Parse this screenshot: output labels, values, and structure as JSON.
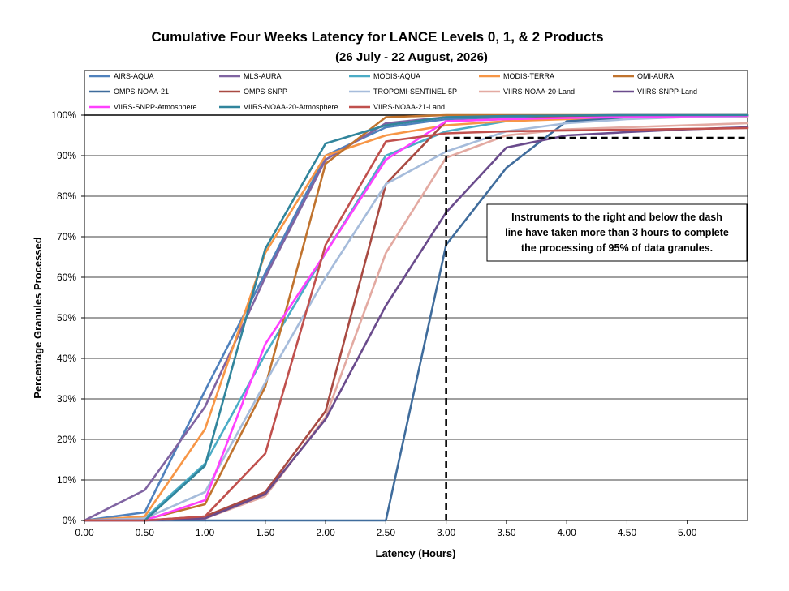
{
  "chart_data": {
    "type": "line",
    "title": "Cumulative Four Weeks Latency  for LANCE Levels 0, 1, & 2 Products",
    "subtitle": "(26  July   -  22  August,  2026)",
    "xlabel": "Latency (Hours)",
    "ylabel": "Percentage Granules Processed",
    "xlim": [
      0,
      5.5
    ],
    "ylim": [
      0,
      100
    ],
    "x_ticks": [
      "0.00",
      "0.50",
      "1.00",
      "1.50",
      "2.00",
      "2.50",
      "3.00",
      "3.50",
      "4.00",
      "4.50",
      "5.00"
    ],
    "y_ticks": [
      "0%",
      "10%",
      "20%",
      "30%",
      "40%",
      "50%",
      "60%",
      "70%",
      "80%",
      "90%",
      "100%"
    ],
    "grid": "horizontal",
    "legend_position": "top",
    "series": [
      {
        "name": "AIRS-AQUA",
        "color": "#4f81bd",
        "x": [
          0,
          0.5,
          1,
          1.5,
          2,
          2.5,
          3,
          3.5,
          4,
          4.5,
          5,
          5.5
        ],
        "y": [
          0,
          2,
          32,
          61,
          90,
          97,
          99,
          99.5,
          99.7,
          99.8,
          99.9,
          100
        ]
      },
      {
        "name": "MLS-AURA",
        "color": "#8064a2",
        "x": [
          0,
          0.5,
          1,
          1.5,
          2,
          2.5,
          3,
          3.5,
          4,
          4.5,
          5,
          5.5
        ],
        "y": [
          0,
          7.5,
          28,
          60,
          89,
          98,
          99.5,
          99.8,
          99.9,
          100,
          100,
          100
        ]
      },
      {
        "name": "MODIS-AQUA",
        "color": "#4bacc6",
        "x": [
          0,
          0.5,
          1,
          1.5,
          2,
          2.5,
          3,
          3.5,
          4,
          4.5,
          5,
          5.5
        ],
        "y": [
          0,
          0.5,
          14,
          41,
          66,
          90,
          96,
          98.5,
          99.5,
          99.8,
          99.9,
          100
        ]
      },
      {
        "name": "MODIS-TERRA",
        "color": "#f79646",
        "x": [
          0,
          0.5,
          1,
          1.5,
          2,
          2.5,
          3,
          3.5,
          4,
          4.5,
          5,
          5.5
        ],
        "y": [
          0,
          1,
          22.5,
          66,
          90,
          95,
          97.5,
          98.5,
          99,
          99.3,
          99.5,
          99.6
        ]
      },
      {
        "name": "OMI-AURA",
        "color": "#c0732e",
        "x": [
          0,
          0.5,
          1,
          1.5,
          2,
          2.5,
          3,
          3.5,
          4,
          4.5,
          5,
          5.5
        ],
        "y": [
          0,
          0.2,
          4,
          33,
          88,
          99.5,
          100,
          100,
          100,
          100,
          100,
          100
        ]
      },
      {
        "name": "OMPS-NOAA-21",
        "color": "#3f6c9c",
        "x": [
          0,
          0.5,
          1,
          1.5,
          2,
          2.5,
          3,
          3.5,
          4,
          4.5,
          5,
          5.5
        ],
        "y": [
          0,
          0,
          0,
          0,
          0,
          0,
          68,
          87,
          98.5,
          99.3,
          99.6,
          99.8
        ]
      },
      {
        "name": "OMPS-SNPP",
        "color": "#a94a42",
        "x": [
          0,
          0.5,
          1,
          1.5,
          2,
          2.5,
          3,
          3.5,
          4,
          4.5,
          5,
          5.5
        ],
        "y": [
          0,
          0,
          1,
          7,
          27,
          83,
          98.5,
          99,
          99.5,
          99.7,
          99.8,
          99.9
        ]
      },
      {
        "name": "TROPOMI-SENTINEL-5P",
        "color": "#a6bcdb",
        "x": [
          0,
          0.5,
          1,
          1.5,
          2,
          2.5,
          3,
          3.5,
          4,
          4.5,
          5,
          5.5
        ],
        "y": [
          0,
          0.5,
          7,
          34,
          60,
          83,
          91,
          96,
          98,
          99,
          99.5,
          99.7
        ]
      },
      {
        "name": "VIIRS-NOAA-20-Land",
        "color": "#e3aaa2",
        "x": [
          0,
          0.5,
          1,
          1.5,
          2,
          2.5,
          3,
          3.5,
          4,
          4.5,
          5,
          5.5
        ],
        "y": [
          0,
          0,
          0.5,
          6,
          25.5,
          66,
          89.5,
          95,
          96.5,
          97,
          97.5,
          98
        ]
      },
      {
        "name": "VIIRS-SNPP-Land",
        "color": "#6a4b8c",
        "x": [
          0,
          0.5,
          1,
          1.5,
          2,
          2.5,
          3,
          3.5,
          4,
          4.5,
          5,
          5.5
        ],
        "y": [
          0,
          0,
          0.5,
          6.5,
          25,
          53,
          76,
          92,
          95,
          95.8,
          96.5,
          97
        ]
      },
      {
        "name": "VIIRS-SNPP-Atmosphere",
        "color": "#ff40ff",
        "x": [
          0,
          0.5,
          1,
          1.5,
          2,
          2.5,
          3,
          3.5,
          4,
          4.5,
          5,
          5.5
        ],
        "y": [
          0,
          0,
          5,
          43.5,
          66,
          89,
          98.5,
          99,
          99.3,
          99.5,
          99.7,
          99.8
        ]
      },
      {
        "name": "VIIRS-NOAA-20-Atmosphere",
        "color": "#31859c",
        "x": [
          0,
          0.5,
          1,
          1.5,
          2,
          2.5,
          3,
          3.5,
          4,
          4.5,
          5,
          5.5
        ],
        "y": [
          0,
          0,
          13.5,
          67,
          93,
          97.5,
          99.5,
          99.8,
          99.9,
          100,
          100,
          100
        ]
      },
      {
        "name": "VIIRS-NOAA-21-Land",
        "color": "#c0504d",
        "x": [
          0,
          0.5,
          1,
          1.5,
          2,
          2.5,
          3,
          3.5,
          4,
          4.5,
          5,
          5.5
        ],
        "y": [
          0,
          0,
          1,
          16.5,
          68,
          93.5,
          95.5,
          96,
          96.2,
          96.4,
          96.6,
          96.8
        ]
      }
    ],
    "reference_line": {
      "x": 3.0,
      "y": 95,
      "style": "dashed",
      "color": "#000000"
    },
    "annotation": {
      "lines": [
        "Instruments to the right and below the dash",
        "line have taken more than 3 hours to complete",
        "the processing of 95% of data granules."
      ]
    }
  }
}
